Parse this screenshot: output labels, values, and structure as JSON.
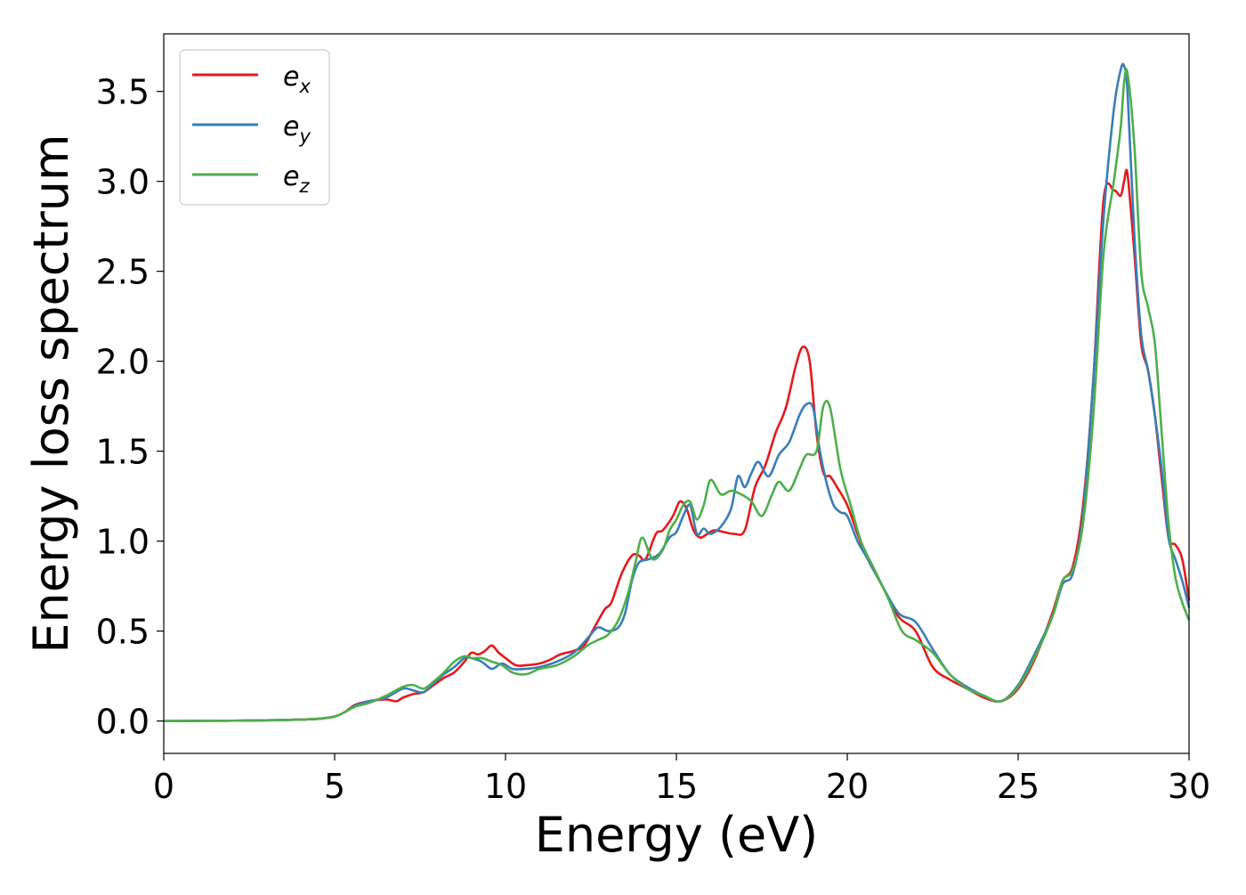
{
  "chart_data": {
    "type": "line",
    "title": "",
    "xlabel": "Energy (eV)",
    "ylabel": "Energy loss spectrum",
    "xlim": [
      0,
      30
    ],
    "ylim": [
      -0.18,
      3.82
    ],
    "xticks": [
      0,
      5,
      10,
      15,
      20,
      25,
      30
    ],
    "yticks": [
      0.0,
      0.5,
      1.0,
      1.5,
      2.0,
      2.5,
      3.0,
      3.5
    ],
    "xtick_labels": [
      "0",
      "5",
      "10",
      "15",
      "20",
      "25",
      "30"
    ],
    "ytick_labels": [
      "0.0",
      "0.5",
      "1.0",
      "1.5",
      "2.0",
      "2.5",
      "3.0",
      "3.5"
    ],
    "grid": false,
    "legend_position": "top-left",
    "series": [
      {
        "name": "e_x",
        "name_base": "e",
        "name_sub": "x",
        "color": "#e41a1c",
        "x": [
          0,
          1,
          2,
          3,
          4,
          4.5,
          5,
          5.3,
          5.6,
          6,
          6.5,
          6.8,
          7,
          7.3,
          7.6,
          7.9,
          8.2,
          8.5,
          8.8,
          9,
          9.2,
          9.4,
          9.6,
          9.8,
          10,
          10.3,
          10.6,
          11,
          11.3,
          11.6,
          12,
          12.3,
          12.6,
          12.9,
          13.1,
          13.4,
          13.7,
          13.9,
          14.1,
          14.4,
          14.6,
          14.9,
          15.1,
          15.3,
          15.5,
          15.7,
          15.9,
          16.1,
          16.4,
          16.7,
          17,
          17.3,
          17.6,
          17.9,
          18.2,
          18.5,
          18.7,
          18.9,
          19.1,
          19.3,
          19.5,
          19.7,
          20,
          20.3,
          20.6,
          21,
          21.5,
          22,
          22.5,
          23,
          23.5,
          24,
          24.5,
          25,
          25.5,
          26,
          26.3,
          26.6,
          26.9,
          27.2,
          27.5,
          27.8,
          28,
          28.1,
          28.2,
          28.4,
          28.6,
          28.8,
          29,
          29.2,
          29.4,
          29.6,
          29.8,
          30
        ],
        "y": [
          0,
          0.001,
          0.002,
          0.004,
          0.008,
          0.012,
          0.025,
          0.05,
          0.09,
          0.11,
          0.12,
          0.11,
          0.13,
          0.15,
          0.16,
          0.2,
          0.24,
          0.27,
          0.33,
          0.38,
          0.37,
          0.39,
          0.42,
          0.38,
          0.35,
          0.31,
          0.31,
          0.32,
          0.34,
          0.37,
          0.39,
          0.42,
          0.52,
          0.62,
          0.66,
          0.82,
          0.92,
          0.92,
          0.9,
          1.04,
          1.06,
          1.14,
          1.22,
          1.18,
          1.06,
          1.02,
          1.04,
          1.06,
          1.05,
          1.04,
          1.06,
          1.3,
          1.42,
          1.6,
          1.74,
          1.98,
          2.08,
          2.0,
          1.6,
          1.38,
          1.36,
          1.3,
          1.2,
          1.04,
          0.9,
          0.76,
          0.58,
          0.5,
          0.3,
          0.23,
          0.18,
          0.13,
          0.11,
          0.18,
          0.35,
          0.6,
          0.78,
          0.86,
          1.2,
          1.9,
          2.9,
          2.95,
          2.92,
          3.0,
          3.04,
          2.6,
          2.1,
          1.95,
          1.7,
          1.35,
          1.02,
          0.98,
          0.9,
          0.67
        ]
      },
      {
        "name": "e_y",
        "name_base": "e",
        "name_sub": "y",
        "color": "#377eb8",
        "x": [
          0,
          1,
          2,
          3,
          4,
          4.5,
          5,
          5.3,
          5.6,
          6,
          6.5,
          7,
          7.3,
          7.6,
          7.9,
          8.2,
          8.5,
          8.8,
          9,
          9.3,
          9.6,
          9.9,
          10.2,
          10.6,
          11,
          11.5,
          12,
          12.4,
          12.7,
          13,
          13.3,
          13.5,
          13.7,
          13.9,
          14.2,
          14.5,
          14.8,
          15,
          15.2,
          15.4,
          15.6,
          15.8,
          16,
          16.3,
          16.6,
          16.8,
          17,
          17.2,
          17.4,
          17.7,
          18,
          18.3,
          18.6,
          18.8,
          19,
          19.2,
          19.4,
          19.6,
          19.8,
          20,
          20.3,
          20.6,
          21,
          21.5,
          22,
          22.5,
          23,
          23.5,
          24,
          24.5,
          25,
          25.5,
          26,
          26.3,
          26.6,
          26.9,
          27.2,
          27.5,
          27.8,
          28,
          28.1,
          28.2,
          28.4,
          28.6,
          28.8,
          29,
          29.2,
          29.4,
          29.6,
          29.8,
          30
        ],
        "y": [
          0,
          0.001,
          0.002,
          0.004,
          0.008,
          0.012,
          0.025,
          0.05,
          0.085,
          0.11,
          0.13,
          0.18,
          0.17,
          0.16,
          0.21,
          0.26,
          0.3,
          0.35,
          0.35,
          0.33,
          0.29,
          0.32,
          0.29,
          0.29,
          0.3,
          0.33,
          0.38,
          0.46,
          0.52,
          0.5,
          0.52,
          0.6,
          0.78,
          0.88,
          0.9,
          0.93,
          1.02,
          1.05,
          1.14,
          1.2,
          1.04,
          1.07,
          1.04,
          1.08,
          1.18,
          1.36,
          1.3,
          1.38,
          1.44,
          1.36,
          1.48,
          1.55,
          1.7,
          1.76,
          1.74,
          1.5,
          1.32,
          1.2,
          1.16,
          1.14,
          1.0,
          0.9,
          0.76,
          0.6,
          0.55,
          0.4,
          0.26,
          0.19,
          0.14,
          0.11,
          0.2,
          0.38,
          0.58,
          0.76,
          0.82,
          1.15,
          1.9,
          2.8,
          3.4,
          3.62,
          3.64,
          3.5,
          2.7,
          2.15,
          1.95,
          1.7,
          1.4,
          1.02,
          0.9,
          0.78,
          0.63
        ]
      },
      {
        "name": "e_z",
        "name_base": "e",
        "name_sub": "z",
        "color": "#4daf4a",
        "x": [
          0,
          1,
          2,
          3,
          4,
          4.5,
          5,
          5.3,
          5.6,
          6,
          6.5,
          7,
          7.3,
          7.6,
          7.9,
          8.2,
          8.5,
          8.8,
          9,
          9.3,
          9.6,
          9.9,
          10.2,
          10.6,
          11,
          11.5,
          12,
          12.4,
          12.7,
          13,
          13.3,
          13.6,
          13.8,
          14,
          14.3,
          14.6,
          14.8,
          15,
          15.2,
          15.4,
          15.6,
          15.8,
          16,
          16.3,
          16.6,
          16.9,
          17.2,
          17.5,
          17.8,
          18,
          18.3,
          18.6,
          18.8,
          19.1,
          19.3,
          19.5,
          19.8,
          20.1,
          20.4,
          20.8,
          21.2,
          21.6,
          22,
          22.5,
          23,
          23.5,
          24,
          24.5,
          25,
          25.5,
          26,
          26.3,
          26.6,
          26.9,
          27.2,
          27.5,
          27.8,
          28,
          28.1,
          28.2,
          28.4,
          28.6,
          28.8,
          29,
          29.2,
          29.4,
          29.6,
          29.8,
          30
        ],
        "y": [
          0,
          0.001,
          0.002,
          0.004,
          0.008,
          0.012,
          0.025,
          0.05,
          0.08,
          0.1,
          0.14,
          0.19,
          0.2,
          0.18,
          0.22,
          0.27,
          0.33,
          0.36,
          0.35,
          0.35,
          0.33,
          0.31,
          0.27,
          0.26,
          0.29,
          0.31,
          0.36,
          0.42,
          0.45,
          0.48,
          0.56,
          0.72,
          0.88,
          1.02,
          0.9,
          0.95,
          1.06,
          1.12,
          1.2,
          1.22,
          1.12,
          1.2,
          1.34,
          1.26,
          1.28,
          1.26,
          1.22,
          1.14,
          1.26,
          1.33,
          1.28,
          1.4,
          1.48,
          1.5,
          1.75,
          1.74,
          1.4,
          1.2,
          1.0,
          0.84,
          0.68,
          0.5,
          0.45,
          0.38,
          0.26,
          0.18,
          0.14,
          0.11,
          0.19,
          0.36,
          0.58,
          0.78,
          0.84,
          1.1,
          1.7,
          2.6,
          3.0,
          3.3,
          3.55,
          3.6,
          3.2,
          2.5,
          2.3,
          2.1,
          1.6,
          1.1,
          0.8,
          0.66,
          0.56
        ]
      }
    ]
  }
}
